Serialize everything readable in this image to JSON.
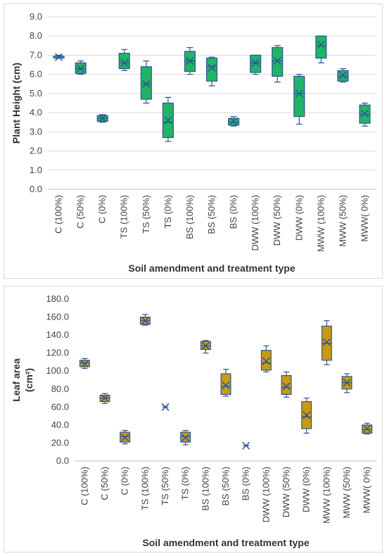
{
  "colors": {
    "green_box": "#1fb565",
    "gold_box": "#c79a10",
    "outline": "#2f5496",
    "gridline": "#d9d9d9"
  },
  "chart_data": [
    {
      "type": "box",
      "title": "",
      "ylabel": "Plant Height (cm)",
      "xlabel": "Soil amendment and treatment type",
      "ylim": [
        0,
        9
      ],
      "yticks": [
        "0.0",
        "1.0",
        "2.0",
        "3.0",
        "4.0",
        "5.0",
        "6.0",
        "7.0",
        "8.0",
        "9.0"
      ],
      "grid": true,
      "box_color": "green",
      "categories": [
        "C (100%)",
        "C (50%)",
        "C (0%)",
        "TS (100%)",
        "TS (50%)",
        "TS (0%)",
        "BS (100%)",
        "BS (50%)",
        "BS (0%)",
        "DWW (100%)",
        "DWW (50%)",
        "DWW (0%)",
        "MWW (100%)",
        "MWW (50%)",
        "MWW( 0%)"
      ],
      "boxes": [
        {
          "min": 6.85,
          "q1": 6.85,
          "median": 6.95,
          "q3": 6.95,
          "max": 7.0,
          "mean": 6.9
        },
        {
          "min": 6.0,
          "q1": 6.05,
          "median": 6.3,
          "q3": 6.6,
          "max": 6.7,
          "mean": 6.3
        },
        {
          "min": 3.5,
          "q1": 3.55,
          "median": 3.7,
          "q3": 3.85,
          "max": 3.9,
          "mean": 3.7
        },
        {
          "min": 6.2,
          "q1": 6.3,
          "median": 6.6,
          "q3": 7.1,
          "max": 7.3,
          "mean": 6.6
        },
        {
          "min": 4.5,
          "q1": 4.7,
          "median": 5.5,
          "q3": 6.4,
          "max": 6.7,
          "mean": 5.5
        },
        {
          "min": 2.5,
          "q1": 2.7,
          "median": 3.5,
          "q3": 4.5,
          "max": 4.8,
          "mean": 3.6
        },
        {
          "min": 6.0,
          "q1": 6.15,
          "median": 6.7,
          "q3": 7.2,
          "max": 7.4,
          "mean": 6.7
        },
        {
          "min": 5.4,
          "q1": 5.65,
          "median": 6.4,
          "q3": 6.85,
          "max": 6.9,
          "mean": 6.35
        },
        {
          "min": 3.3,
          "q1": 3.35,
          "median": 3.5,
          "q3": 3.7,
          "max": 3.8,
          "mean": 3.55
        },
        {
          "min": 6.0,
          "q1": 6.1,
          "median": 6.6,
          "q3": 7.0,
          "max": 7.0,
          "mean": 6.6
        },
        {
          "min": 5.6,
          "q1": 5.9,
          "median": 6.7,
          "q3": 7.4,
          "max": 7.5,
          "mean": 6.7
        },
        {
          "min": 3.4,
          "q1": 3.8,
          "median": 5.0,
          "q3": 5.9,
          "max": 6.0,
          "mean": 5.0
        },
        {
          "min": 6.6,
          "q1": 6.85,
          "median": 7.5,
          "q3": 8.0,
          "max": 8.0,
          "mean": 7.55
        },
        {
          "min": 5.6,
          "q1": 5.65,
          "median": 5.9,
          "q3": 6.2,
          "max": 6.3,
          "mean": 5.95
        },
        {
          "min": 3.3,
          "q1": 3.45,
          "median": 3.9,
          "q3": 4.4,
          "max": 4.5,
          "mean": 3.95
        }
      ]
    },
    {
      "type": "box",
      "title": "",
      "ylabel": "Leaf area",
      "ylabel_unit": "(cm²)",
      "xlabel": "Soil amendment and treatment type",
      "ylim": [
        0,
        180
      ],
      "yticks": [
        "0.0",
        "20.0",
        "40.0",
        "60.0",
        "80.0",
        "100.0",
        "120.0",
        "140.0",
        "160.0",
        "180.0"
      ],
      "grid": false,
      "box_color": "gold",
      "categories": [
        "C (100%)",
        "C (50%)",
        "C (0%)",
        "TS (100%)",
        "TS (50%)",
        "TS (0%)",
        "BS (100%)",
        "BS (50%)",
        "BS (0%)",
        "DWW (100%)",
        "DWW (50%)",
        "DWW (0%)",
        "MWW (100%)",
        "MWW (50%)",
        "MWW( 0%)"
      ],
      "boxes": [
        {
          "min": 103,
          "q1": 105,
          "median": 109,
          "q3": 112,
          "max": 114,
          "mean": 108
        },
        {
          "min": 64,
          "q1": 66,
          "median": 70,
          "q3": 73,
          "max": 75,
          "mean": 70
        },
        {
          "min": 19,
          "q1": 21,
          "median": 27,
          "q3": 32,
          "max": 34,
          "mean": 26
        },
        {
          "min": 151,
          "q1": 152,
          "median": 156,
          "q3": 160,
          "max": 163,
          "mean": 156
        },
        {
          "min": 60,
          "q1": 60,
          "median": 60,
          "q3": 60,
          "max": 60,
          "mean": 60
        },
        {
          "min": 18,
          "q1": 21,
          "median": 27,
          "q3": 32,
          "max": 34,
          "mean": 26
        },
        {
          "min": 120,
          "q1": 124,
          "median": 128,
          "q3": 133,
          "max": 134,
          "mean": 128
        },
        {
          "min": 72,
          "q1": 74,
          "median": 83,
          "q3": 97,
          "max": 102,
          "mean": 84
        },
        {
          "min": 17,
          "q1": 17,
          "median": 17,
          "q3": 17,
          "max": 17,
          "mean": 17
        },
        {
          "min": 99,
          "q1": 101,
          "median": 109,
          "q3": 123,
          "max": 128,
          "mean": 111
        },
        {
          "min": 71,
          "q1": 74,
          "median": 82,
          "q3": 95,
          "max": 99,
          "mean": 83
        },
        {
          "min": 31,
          "q1": 36,
          "median": 49,
          "q3": 66,
          "max": 70,
          "mean": 51
        },
        {
          "min": 107,
          "q1": 112,
          "median": 131,
          "q3": 150,
          "max": 156,
          "mean": 132
        },
        {
          "min": 76,
          "q1": 80,
          "median": 87,
          "q3": 94,
          "max": 97,
          "mean": 87
        },
        {
          "min": 30,
          "q1": 31,
          "median": 35,
          "q3": 40,
          "max": 42,
          "mean": 36
        }
      ]
    }
  ]
}
